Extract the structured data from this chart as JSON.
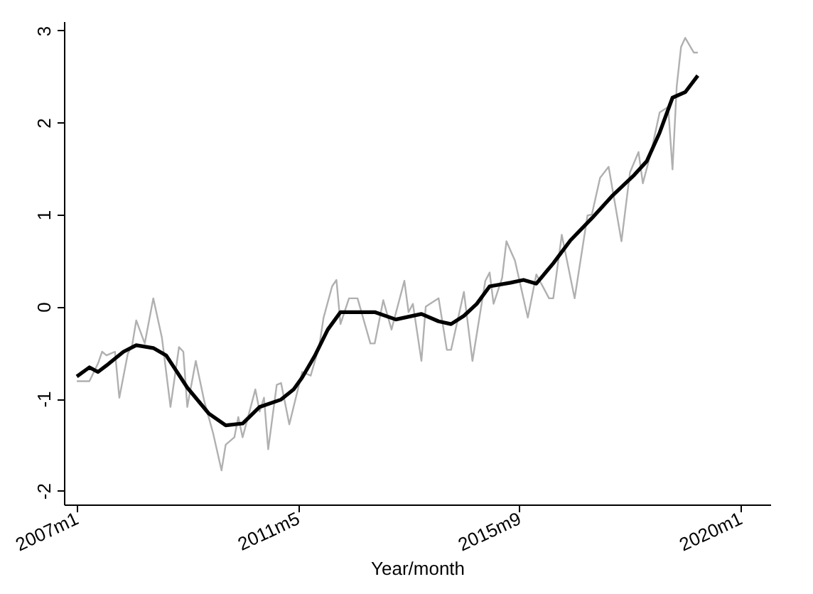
{
  "chart_data": {
    "type": "line",
    "xlabel": "Year/month",
    "xlim": [
      "2006-10",
      "2020-08"
    ],
    "xticks": [
      {
        "value": "2007-01",
        "label": "2007m1"
      },
      {
        "value": "2011-05",
        "label": "2011m5"
      },
      {
        "value": "2015-09",
        "label": "2015m9"
      },
      {
        "value": "2020-01",
        "label": "2020m1"
      }
    ],
    "ylim": [
      -2.15,
      3.1
    ],
    "yticks": [
      -2,
      -1,
      0,
      1,
      2,
      3
    ],
    "grid": false,
    "marker": "none",
    "line_style": "solid",
    "series": [
      {
        "color": "#b0b0b0",
        "x": [
          "2007-01",
          "2007-04",
          "2007-06",
          "2007-07",
          "2007-08",
          "2007-10",
          "2007-11",
          "2008-01",
          "2008-02",
          "2008-03",
          "2008-05",
          "2008-07",
          "2008-09",
          "2008-11",
          "2009-01",
          "2009-02",
          "2009-03",
          "2009-05",
          "2009-07",
          "2009-09",
          "2009-11",
          "2009-12",
          "2010-02",
          "2010-03",
          "2010-04",
          "2010-07",
          "2010-08",
          "2010-09",
          "2010-10",
          "2010-12",
          "2011-01",
          "2011-03",
          "2011-06",
          "2011-08",
          "2011-10",
          "2011-11",
          "2012-01",
          "2012-02",
          "2012-03",
          "2012-05",
          "2012-07",
          "2012-10",
          "2012-11",
          "2013-01",
          "2013-03",
          "2013-06",
          "2013-07",
          "2013-08",
          "2013-10",
          "2013-11",
          "2014-02",
          "2014-04",
          "2014-05",
          "2014-08",
          "2014-10",
          "2015-01",
          "2015-02",
          "2015-03",
          "2015-05",
          "2015-06",
          "2015-08",
          "2015-11",
          "2016-01",
          "2016-04",
          "2016-05",
          "2016-07",
          "2016-10",
          "2017-01",
          "2017-02",
          "2017-04",
          "2017-06",
          "2017-09",
          "2017-11",
          "2018-01",
          "2018-02",
          "2018-04",
          "2018-06",
          "2018-08",
          "2018-09",
          "2018-10",
          "2018-11",
          "2018-12",
          "2019-02",
          "2019-03"
        ],
        "values": [
          -0.81,
          -0.81,
          -0.62,
          -0.49,
          -0.53,
          -0.49,
          -0.99,
          -0.51,
          -0.42,
          -0.15,
          -0.4,
          0.09,
          -0.34,
          -1.09,
          -0.44,
          -0.49,
          -1.09,
          -0.59,
          -1.03,
          -1.37,
          -1.78,
          -1.5,
          -1.42,
          -1.2,
          -1.42,
          -0.9,
          -1.14,
          -0.99,
          -1.55,
          -0.85,
          -0.83,
          -1.28,
          -0.71,
          -0.75,
          -0.43,
          -0.12,
          0.22,
          0.29,
          -0.19,
          0.09,
          0.09,
          -0.4,
          -0.4,
          0.07,
          -0.25,
          0.28,
          -0.06,
          0.03,
          -0.59,
          0.0,
          0.09,
          -0.47,
          -0.47,
          0.16,
          -0.59,
          0.28,
          0.37,
          0.03,
          0.31,
          0.71,
          0.5,
          -0.12,
          0.35,
          0.09,
          0.09,
          0.78,
          0.09,
          0.99,
          1.0,
          1.4,
          1.52,
          0.71,
          1.46,
          1.68,
          1.34,
          1.68,
          2.11,
          2.17,
          1.49,
          2.39,
          2.82,
          2.92,
          2.76,
          2.76
        ]
      },
      {
        "color": "#000000",
        "x": [
          "2007-01",
          "2007-04",
          "2007-06",
          "2007-08",
          "2007-12",
          "2008-03",
          "2008-07",
          "2008-10",
          "2009-03",
          "2009-08",
          "2009-12",
          "2010-04",
          "2010-08",
          "2011-01",
          "2011-04",
          "2011-06",
          "2011-09",
          "2011-12",
          "2012-03",
          "2012-07",
          "2012-11",
          "2013-04",
          "2013-10",
          "2014-02",
          "2014-05",
          "2014-08",
          "2014-11",
          "2015-02",
          "2015-07",
          "2015-10",
          "2016-01",
          "2016-05",
          "2016-09",
          "2017-02",
          "2017-07",
          "2017-12",
          "2018-03",
          "2018-06",
          "2018-09",
          "2018-12",
          "2019-03"
        ],
        "values": [
          -0.76,
          -0.66,
          -0.71,
          -0.64,
          -0.49,
          -0.42,
          -0.45,
          -0.53,
          -0.88,
          -1.16,
          -1.29,
          -1.27,
          -1.09,
          -1.01,
          -0.9,
          -0.77,
          -0.53,
          -0.25,
          -0.06,
          -0.06,
          -0.06,
          -0.14,
          -0.08,
          -0.16,
          -0.19,
          -0.1,
          0.03,
          0.22,
          0.26,
          0.29,
          0.25,
          0.47,
          0.72,
          0.96,
          1.21,
          1.43,
          1.58,
          1.89,
          2.27,
          2.33,
          2.51
        ]
      }
    ]
  }
}
